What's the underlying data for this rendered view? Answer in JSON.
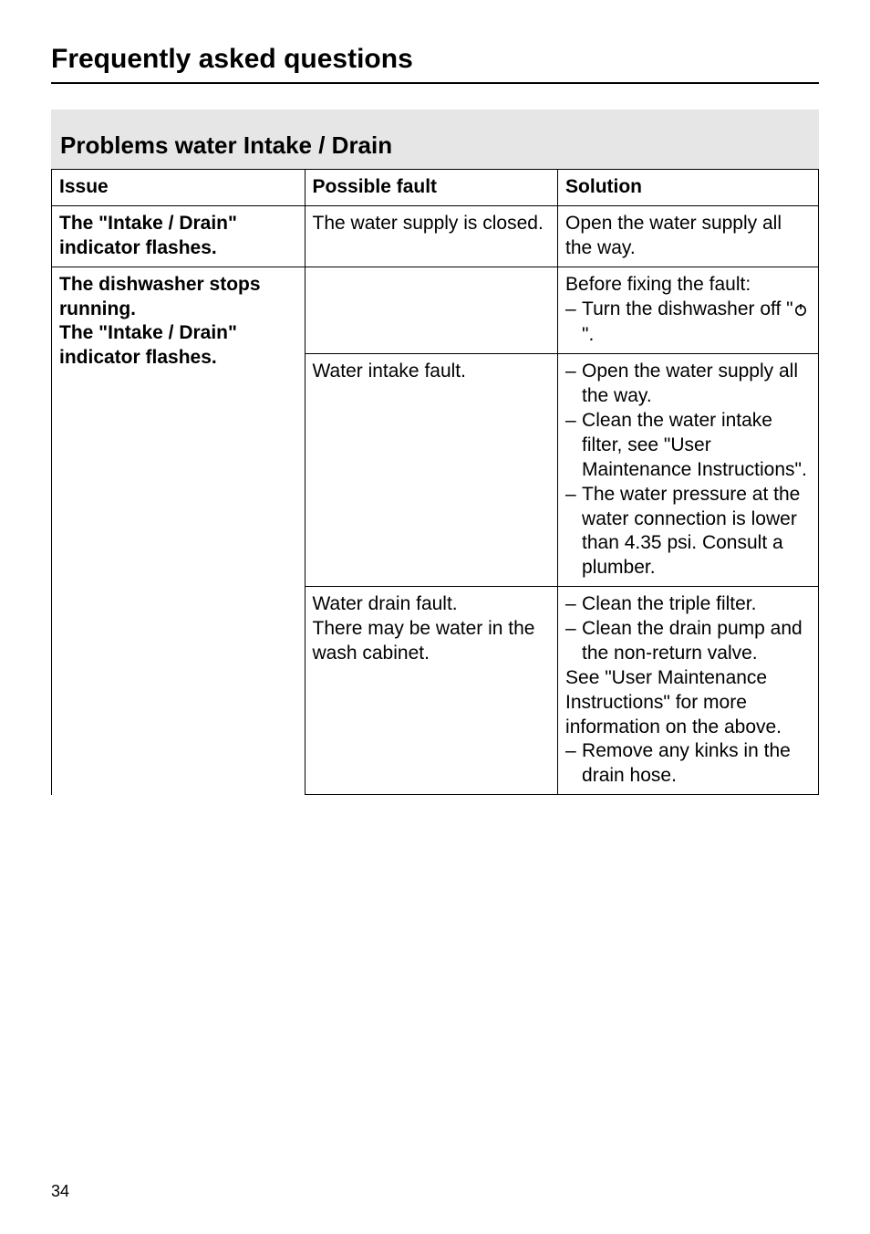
{
  "page": {
    "title": "Frequently asked questions",
    "number": "34"
  },
  "section": {
    "title": "Problems water Intake / Drain"
  },
  "table": {
    "headers": {
      "issue": "Issue",
      "fault": "Possible fault",
      "solution": "Solution"
    },
    "rows": [
      {
        "issue": "The \"Intake / Drain\" indicator flashes.",
        "fault": "The water supply is closed.",
        "solution_plain": "Open the water supply all the way."
      },
      {
        "issue": "The dishwasher stops running.\nThe \"Intake / Drain\" indicator flashes.",
        "fault": "",
        "solution_lead": "Before fixing the fault:",
        "solution_items": [
          "Turn the dishwasher off \"__POWER__\"."
        ]
      },
      {
        "fault": "Water intake fault.",
        "solution_items": [
          "Open the water supply all the way.",
          "Clean the water intake filter, see \"User Maintenance Instructions\".",
          "The water pressure at the water connection is lower than 4.35 psi. Consult a plumber."
        ]
      },
      {
        "fault": "Water drain fault.\nThere may be water in the wash cabinet.",
        "solution_items_a": [
          "Clean the triple filter.",
          "Clean the drain pump and the non-return valve."
        ],
        "solution_mid": "See \"User Maintenance Instructions\" for more information on the above.",
        "solution_items_b": [
          "Remove any kinks in the drain hose."
        ]
      }
    ]
  },
  "colors": {
    "header_bg": "#e6e6e6",
    "text": "#000000",
    "border": "#000000",
    "background": "#ffffff"
  }
}
